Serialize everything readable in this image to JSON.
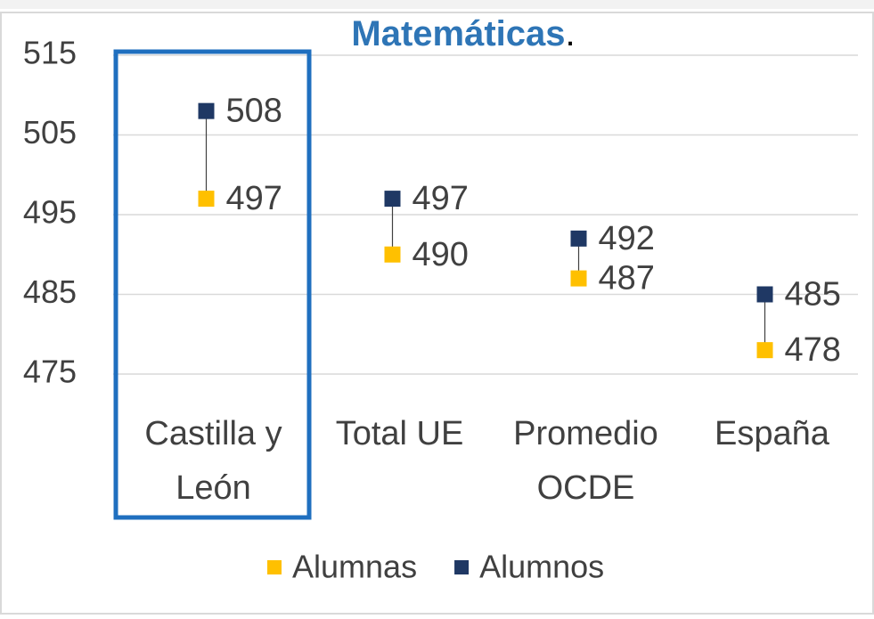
{
  "chart_data": {
    "type": "dumbbell",
    "title": [
      "Matemáticas",
      "."
    ],
    "categories": [
      [
        "Castilla y",
        "León"
      ],
      [
        "Total UE"
      ],
      [
        "Promedio",
        "OCDE"
      ],
      [
        "España"
      ]
    ],
    "series": [
      {
        "name": "Alumnas",
        "color": "#ffc000",
        "values": [
          497,
          490,
          487,
          478
        ]
      },
      {
        "name": "Alumnos",
        "color": "#1f3864",
        "values": [
          508,
          497,
          492,
          485
        ]
      }
    ],
    "ylim": [
      475,
      515
    ],
    "yticks": [
      475,
      485,
      495,
      505,
      515
    ],
    "grid": true,
    "legend": "bottom"
  }
}
